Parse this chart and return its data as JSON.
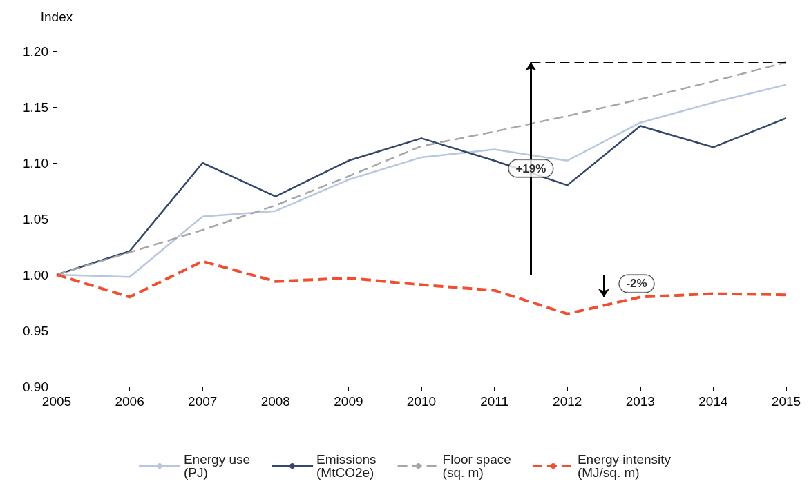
{
  "chart_data": {
    "type": "line",
    "ylabel": "Index",
    "x": [
      2005,
      2006,
      2007,
      2008,
      2009,
      2010,
      2011,
      2012,
      2013,
      2014,
      2015
    ],
    "series": [
      {
        "name": "Energy use (PJ)",
        "color": "#b8c7e0",
        "line_style": "solid",
        "values": [
          1.0,
          0.998,
          1.052,
          1.057,
          1.085,
          1.105,
          1.112,
          1.102,
          1.136,
          1.154,
          1.17
        ]
      },
      {
        "name": "Emissions (MtCO2e)",
        "color": "#33476b",
        "line_style": "solid",
        "values": [
          1.0,
          1.021,
          1.1,
          1.07,
          1.102,
          1.122,
          1.102,
          1.08,
          1.133,
          1.114,
          1.14
        ]
      },
      {
        "name": "Floor space (sq. m)",
        "color": "#a6a6a6",
        "line_style": "dashed",
        "values": [
          1.0,
          1.02,
          1.04,
          1.062,
          1.088,
          1.115,
          1.128,
          1.142,
          1.157,
          1.173,
          1.19
        ]
      },
      {
        "name": "Energy intensity (MJ/sq. m)",
        "color": "#f04e30",
        "line_style": "dashed",
        "values": [
          1.0,
          0.98,
          1.012,
          0.994,
          0.997,
          0.991,
          0.986,
          0.965,
          0.98,
          0.983,
          0.982
        ]
      }
    ],
    "xlim": [
      2005,
      2015
    ],
    "xticks": [
      2005,
      2006,
      2007,
      2008,
      2009,
      2010,
      2011,
      2012,
      2013,
      2014,
      2015
    ],
    "ylim": [
      0.9,
      1.2
    ],
    "yticks": [
      {
        "value": 0.9,
        "label": "0.90"
      },
      0.95,
      {
        "value": 1.0,
        "label": "1.00"
      },
      1.05,
      {
        "value": 1.1,
        "label": "1.10"
      },
      1.15,
      {
        "value": 1.2,
        "label": "1.20"
      }
    ],
    "ref_lines": [
      {
        "axis": "y",
        "value": 1.0,
        "color": "#000000",
        "line_style": "dashed"
      },
      {
        "axis": "y",
        "value": 1.19,
        "color": "#000000",
        "line_style": "dashed"
      },
      {
        "axis": "y",
        "value": 0.98,
        "color": "#000000",
        "line_style": "dashed"
      }
    ],
    "annotations": [
      "+19%",
      "-2%"
    ],
    "grid": false,
    "legend": "bottom",
    "marker": "none"
  }
}
